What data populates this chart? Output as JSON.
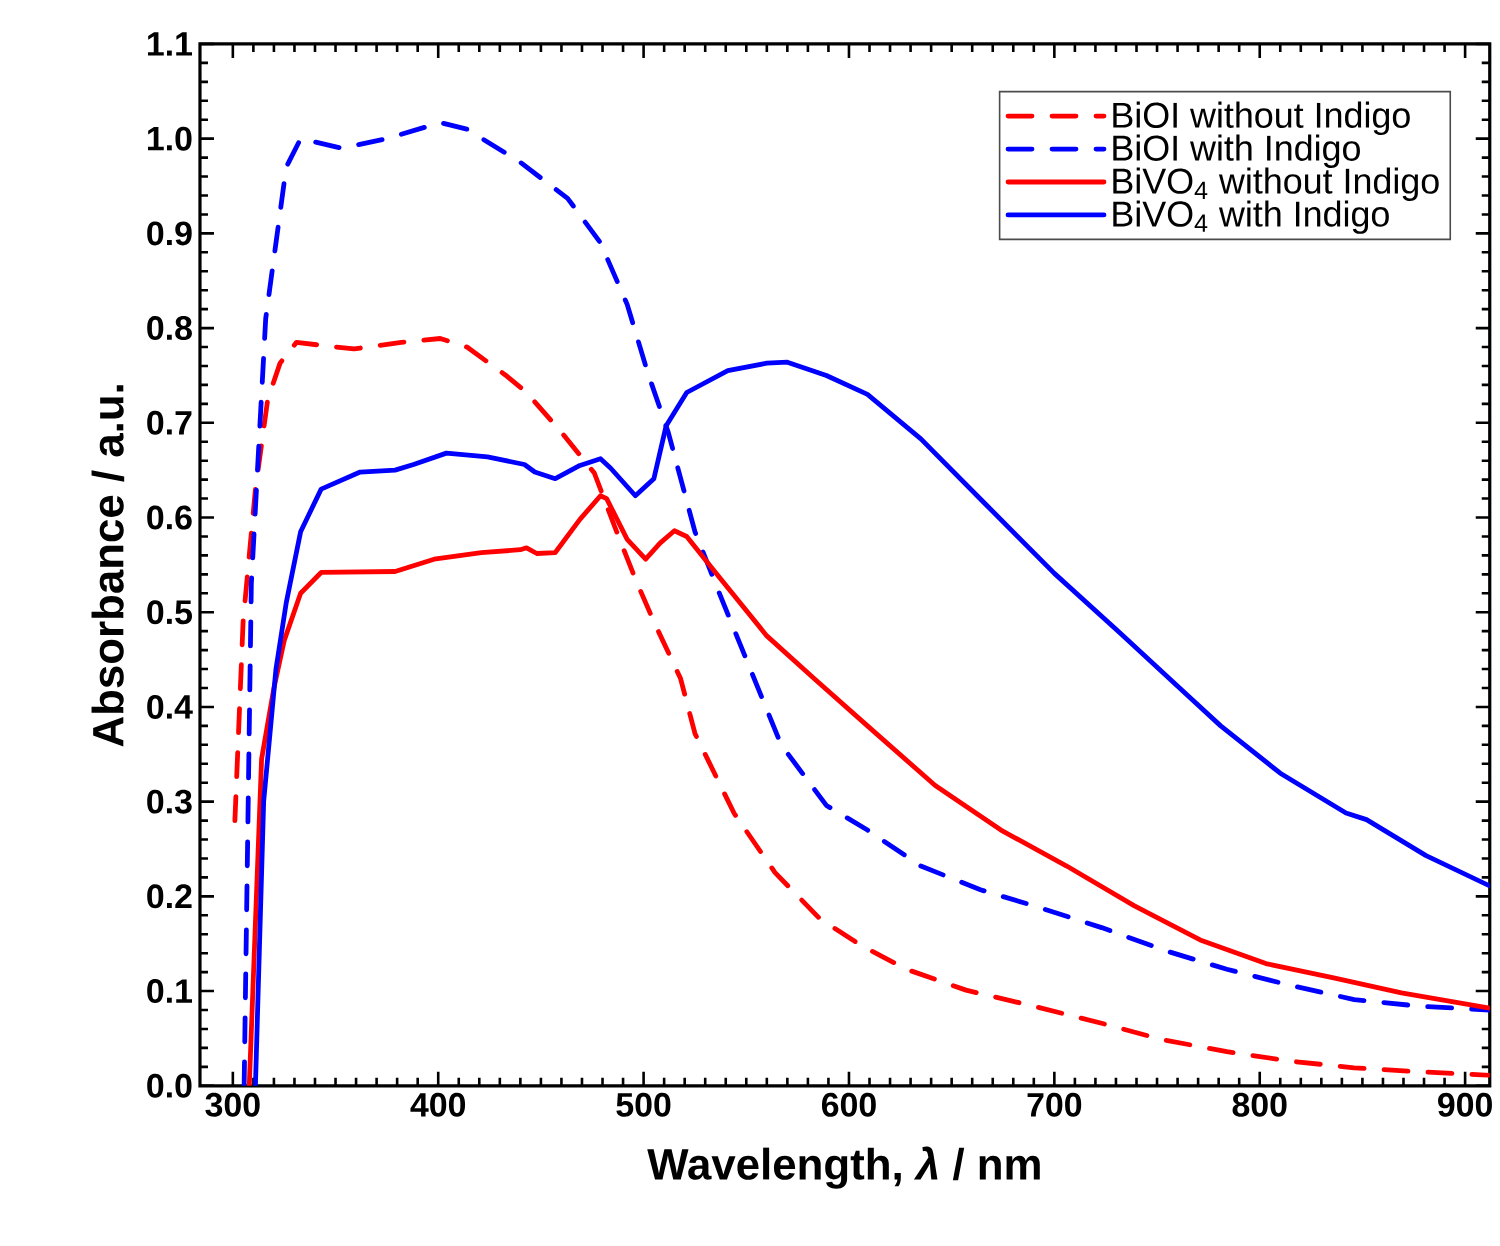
{
  "chart_data": {
    "type": "line",
    "xlabel": "Wavelength, *λ* / nm",
    "ylabel": "Absorbance / a.u.",
    "xlim": [
      284,
      912
    ],
    "ylim": [
      0,
      1.1
    ],
    "xticks": [
      300,
      400,
      500,
      600,
      700,
      800,
      900
    ],
    "yticks": [
      {
        "value": 0,
        "label": "0.0"
      },
      {
        "value": 0.1,
        "label": "0.1"
      },
      {
        "value": 0.2,
        "label": "0.2"
      },
      {
        "value": 0.3,
        "label": "0.3"
      },
      {
        "value": 0.4,
        "label": "0.4"
      },
      {
        "value": 0.5,
        "label": "0.5"
      },
      {
        "value": 0.6,
        "label": "0.6"
      },
      {
        "value": 0.7,
        "label": "0.7"
      },
      {
        "value": 0.8,
        "label": "0.8"
      },
      {
        "value": 0.9,
        "label": "0.9"
      },
      {
        "value": 1.0,
        "label": "1.0"
      },
      {
        "value": 1.1,
        "label": "1.1"
      }
    ],
    "legend": "top right",
    "marker": "none",
    "series": [
      {
        "name": "BiOI without Indigo",
        "color": "#ff0000",
        "line_style": "dashed",
        "x": [
          301,
          305,
          311,
          317,
          323,
          331,
          350,
          359,
          382,
          401,
          414,
          433,
          443,
          460,
          476,
          486,
          496,
          505,
          518,
          525,
          544,
          564,
          586,
          606,
          628,
          657,
          690,
          723,
          752,
          784,
          815,
          846,
          876,
          912
        ],
        "values": [
          0.28,
          0.49,
          0.63,
          0.725,
          0.763,
          0.785,
          0.78,
          0.778,
          0.785,
          0.789,
          0.78,
          0.75,
          0.732,
          0.69,
          0.647,
          0.59,
          0.535,
          0.49,
          0.43,
          0.372,
          0.288,
          0.225,
          0.176,
          0.148,
          0.123,
          0.101,
          0.084,
          0.066,
          0.049,
          0.036,
          0.026,
          0.019,
          0.015,
          0.011
        ]
      },
      {
        "name": "BiOI with Indigo",
        "color": "#0000ff",
        "line_style": "dashed",
        "x": [
          305.5,
          309,
          316,
          321,
          326,
          333,
          353,
          375,
          401,
          414,
          440,
          463,
          479,
          492,
          502,
          512,
          525,
          538,
          567,
          589,
          609,
          635,
          664,
          693,
          723,
          755,
          784,
          815,
          846,
          878,
          912
        ],
        "values": [
          0,
          0.53,
          0.81,
          0.89,
          0.97,
          1.0,
          0.99,
          1.0,
          1.017,
          1.01,
          0.975,
          0.937,
          0.89,
          0.825,
          0.753,
          0.69,
          0.585,
          0.514,
          0.36,
          0.296,
          0.27,
          0.232,
          0.207,
          0.188,
          0.167,
          0.142,
          0.123,
          0.106,
          0.091,
          0.084,
          0.08
        ]
      },
      {
        "name": "BiVO$_{4}$ without Indigo",
        "color": "#ff0000",
        "line_style": "solid",
        "x": [
          308,
          314,
          320,
          325,
          333,
          343,
          379,
          398,
          421,
          440,
          443,
          448,
          457,
          469,
          479,
          482,
          492,
          501,
          508,
          515,
          521,
          535,
          560,
          583,
          609,
          642,
          674,
          706,
          739,
          771,
          803,
          836,
          869,
          912
        ],
        "values": [
          0,
          0.345,
          0.42,
          0.47,
          0.52,
          0.542,
          0.543,
          0.556,
          0.563,
          0.566,
          0.568,
          0.562,
          0.563,
          0.598,
          0.623,
          0.62,
          0.577,
          0.556,
          0.573,
          0.586,
          0.58,
          0.542,
          0.475,
          0.43,
          0.38,
          0.317,
          0.27,
          0.232,
          0.19,
          0.154,
          0.129,
          0.114,
          0.098,
          0.082
        ]
      },
      {
        "name": "BiVO$_{4}$ with Indigo",
        "color": "#0000ff",
        "line_style": "solid",
        "x": [
          311,
          315,
          321,
          326,
          333,
          343,
          362,
          379,
          388,
          404,
          424,
          442,
          447,
          457,
          469,
          479,
          484,
          496,
          505,
          511,
          521,
          541,
          560,
          570,
          589,
          609,
          635,
          667,
          700,
          732,
          764,
          781,
          810,
          842,
          852,
          881,
          912
        ],
        "values": [
          0,
          0.3,
          0.44,
          0.51,
          0.585,
          0.63,
          0.648,
          0.65,
          0.656,
          0.668,
          0.664,
          0.656,
          0.648,
          0.641,
          0.655,
          0.662,
          0.652,
          0.623,
          0.641,
          0.697,
          0.732,
          0.755,
          0.763,
          0.764,
          0.75,
          0.73,
          0.683,
          0.613,
          0.541,
          0.478,
          0.414,
          0.38,
          0.33,
          0.288,
          0.281,
          0.243,
          0.211
        ]
      }
    ]
  }
}
